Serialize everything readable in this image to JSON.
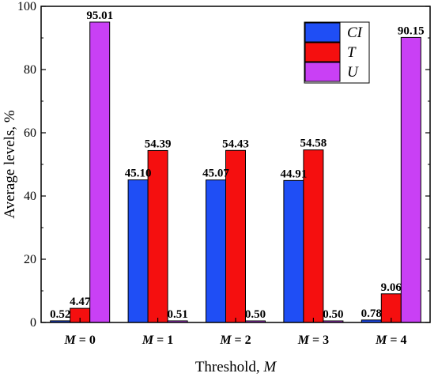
{
  "chart_data": {
    "type": "bar",
    "categories": [
      "M = 0",
      "M = 1",
      "M = 2",
      "M = 3",
      "M = 4"
    ],
    "category_parts": [
      {
        "var": "M",
        "rest": " = 0"
      },
      {
        "var": "M",
        "rest": " = 1"
      },
      {
        "var": "M",
        "rest": " = 2"
      },
      {
        "var": "M",
        "rest": " = 3"
      },
      {
        "var": "M",
        "rest": " = 4"
      }
    ],
    "series": [
      {
        "name": "CI",
        "color": "#1f4ef5",
        "values": [
          0.52,
          45.1,
          45.07,
          44.91,
          0.78
        ],
        "labels": [
          "0.52",
          "45.10",
          "45.07",
          "44.91",
          "0.78"
        ]
      },
      {
        "name": "T",
        "color": "#f50f0f",
        "values": [
          4.47,
          54.39,
          54.43,
          54.58,
          9.06
        ],
        "labels": [
          "4.47",
          "54.39",
          "54.43",
          "54.58",
          "9.06"
        ]
      },
      {
        "name": "U",
        "color": "#c940f5",
        "values": [
          95.01,
          0.51,
          0.5,
          0.5,
          90.15
        ],
        "labels": [
          "95.01",
          "0.51",
          "0.50",
          "0.50",
          "90.15"
        ]
      }
    ],
    "ylabel": "Average levels, %",
    "xlabel": {
      "text": "Threshold, ",
      "var": "M"
    },
    "ylim": [
      0,
      100
    ],
    "yticks": [
      0,
      20,
      40,
      60,
      80,
      100
    ],
    "grid": false,
    "legend_position": "top-right"
  }
}
